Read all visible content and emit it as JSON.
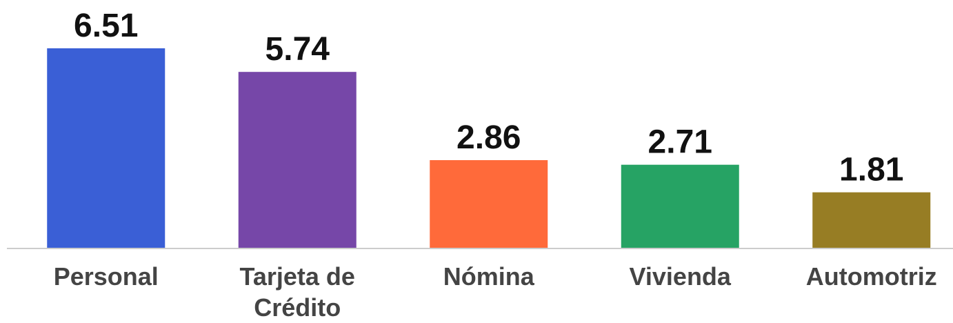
{
  "chart_data": {
    "type": "bar",
    "categories": [
      "Personal",
      "Tarjeta de Crédito",
      "Nómina",
      "Vivienda",
      "Automotriz"
    ],
    "values": [
      6.51,
      5.74,
      2.86,
      2.71,
      1.81
    ],
    "colors": [
      "#3a5fd6",
      "#7647a8",
      "#ff6a3a",
      "#26a364",
      "#977d24"
    ]
  }
}
